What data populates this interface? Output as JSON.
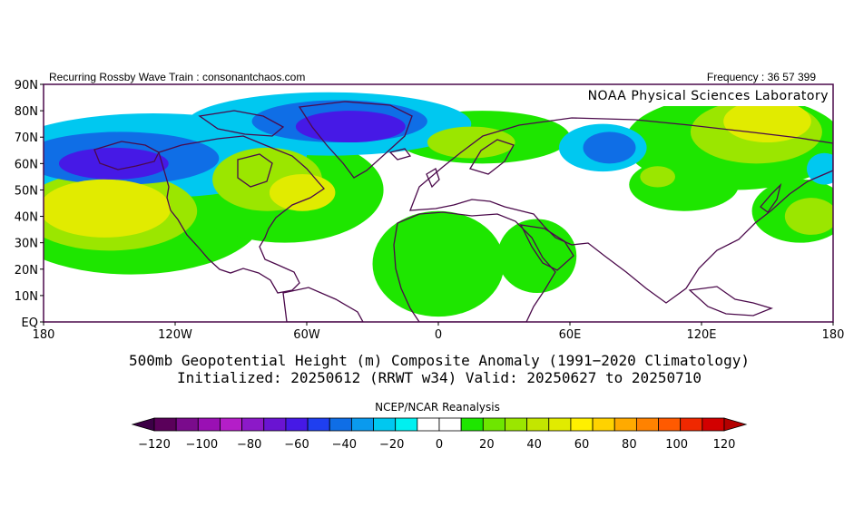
{
  "header": {
    "left_text": "Recurring Rossby Wave Train : consonantchaos.com",
    "right_text": "Frequency : 36 57 399"
  },
  "map": {
    "credit": "NOAA Physical Sciences Laboratory",
    "lat_labels": [
      "90N",
      "80N",
      "70N",
      "60N",
      "50N",
      "40N",
      "30N",
      "20N",
      "10N",
      "EQ"
    ],
    "lon_labels": [
      "180",
      "120W",
      "60W",
      "0",
      "60E",
      "120E",
      "180"
    ],
    "projection": "cylindrical equidistant",
    "lat_range": [
      0,
      90
    ],
    "lon_range": [
      -180,
      180
    ]
  },
  "titles": {
    "line1": "500mb Geopotential Height (m) Composite Anomaly (1991−2020 Climatology)",
    "line2": "Initialized: 20250612 (RRWT w34) Valid: 20250627 to 20250710"
  },
  "colorbar": {
    "source_label": "NCEP/NCAR Reanalysis",
    "tick_labels": [
      "−120",
      "−100",
      "−80",
      "−60",
      "−40",
      "−20",
      "0",
      "20",
      "40",
      "60",
      "80",
      "100",
      "120"
    ],
    "colors": [
      "#5a005a",
      "#7a0b8c",
      "#9a10b4",
      "#b41ec8",
      "#8c19c8",
      "#6a14d2",
      "#4619e6",
      "#1f3ff0",
      "#0f6ee6",
      "#0a9aee",
      "#00c8f0",
      "#00f0f0",
      "#ffffff",
      "#ffffff",
      "#1ee600",
      "#6ee600",
      "#9be600",
      "#c3e600",
      "#e1eb00",
      "#fff000",
      "#ffd200",
      "#ffaa00",
      "#ff8200",
      "#ff5a00",
      "#f02800",
      "#d20000"
    ],
    "under_color": "#3c0046",
    "over_color": "#b40000"
  },
  "anomaly_features": [
    {
      "level": 60,
      "lon": -152,
      "lat": 43,
      "rx": 30,
      "ry": 11
    },
    {
      "level": 40,
      "lon": -150,
      "lat": 42,
      "rx": 40,
      "ry": 15
    },
    {
      "level": 20,
      "lon": -140,
      "lat": 40,
      "rx": 60,
      "ry": 22
    },
    {
      "level": 20,
      "lon": -70,
      "lat": 50,
      "rx": 45,
      "ry": 20
    },
    {
      "level": 40,
      "lon": -78,
      "lat": 54,
      "rx": 25,
      "ry": 12
    },
    {
      "level": 60,
      "lon": -62,
      "lat": 49,
      "rx": 15,
      "ry": 7
    },
    {
      "level": 20,
      "lon": 0,
      "lat": 22,
      "rx": 30,
      "ry": 20
    },
    {
      "level": 20,
      "lon": 45,
      "lat": 25,
      "rx": 18,
      "ry": 14
    },
    {
      "level": 20,
      "lon": 20,
      "lat": 70,
      "rx": 40,
      "ry": 10
    },
    {
      "level": 40,
      "lon": 15,
      "lat": 68,
      "rx": 20,
      "ry": 6
    },
    {
      "level": 20,
      "lon": 135,
      "lat": 68,
      "rx": 50,
      "ry": 18
    },
    {
      "level": 40,
      "lon": 145,
      "lat": 72,
      "rx": 30,
      "ry": 12
    },
    {
      "level": 60,
      "lon": 150,
      "lat": 76,
      "rx": 20,
      "ry": 8
    },
    {
      "level": 20,
      "lon": 165,
      "lat": 42,
      "rx": 22,
      "ry": 12
    },
    {
      "level": 40,
      "lon": 170,
      "lat": 40,
      "rx": 12,
      "ry": 7
    },
    {
      "level": 20,
      "lon": 112,
      "lat": 52,
      "rx": 25,
      "ry": 10
    },
    {
      "level": 40,
      "lon": 100,
      "lat": 55,
      "rx": 8,
      "ry": 4
    },
    {
      "level": -20,
      "lon": -130,
      "lat": 63,
      "rx": 70,
      "ry": 16
    },
    {
      "level": -40,
      "lon": -145,
      "lat": 62,
      "rx": 45,
      "ry": 10
    },
    {
      "level": -60,
      "lon": -148,
      "lat": 60,
      "rx": 25,
      "ry": 6
    },
    {
      "level": -20,
      "lon": -50,
      "lat": 75,
      "rx": 65,
      "ry": 12
    },
    {
      "level": -40,
      "lon": -45,
      "lat": 76,
      "rx": 40,
      "ry": 8
    },
    {
      "level": -60,
      "lon": -40,
      "lat": 74,
      "rx": 25,
      "ry": 6
    },
    {
      "level": -20,
      "lon": 75,
      "lat": 66,
      "rx": 20,
      "ry": 9
    },
    {
      "level": -40,
      "lon": 78,
      "lat": 66,
      "rx": 12,
      "ry": 6
    },
    {
      "level": -20,
      "lon": 176,
      "lat": 58,
      "rx": 8,
      "ry": 6
    }
  ]
}
